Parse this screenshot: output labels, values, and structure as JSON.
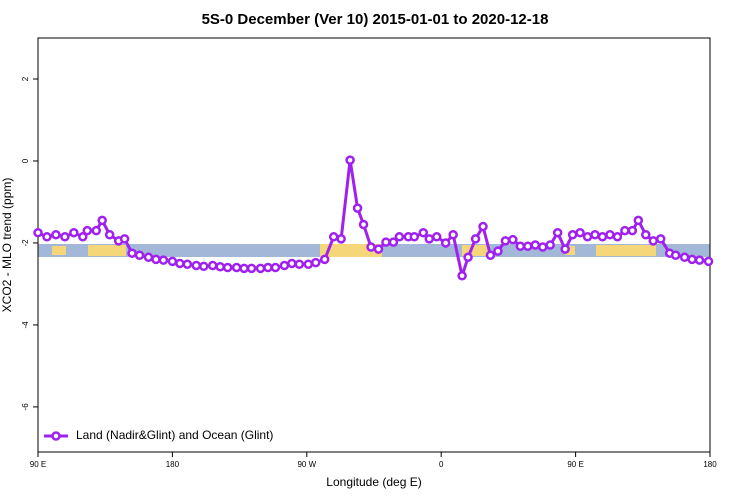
{
  "chart_data": {
    "type": "line",
    "title": "5S-0 December (Ver 10)   2015-01-01 to 2020-12-18",
    "x_label": "Longitude (deg E)",
    "y_label": "XCO2 - MLO trend (ppm)",
    "x": [
      90,
      96,
      102,
      108,
      114,
      120,
      123,
      129,
      133,
      138,
      144,
      148,
      153,
      158,
      164,
      169,
      174,
      180,
      185,
      190,
      196,
      201,
      207,
      212,
      217,
      223,
      228,
      233,
      239,
      244,
      249,
      255,
      260,
      265,
      271,
      276,
      282,
      288,
      293,
      299,
      304,
      308,
      313,
      318,
      323,
      328,
      332,
      338,
      342,
      348,
      352,
      357,
      363,
      368,
      374,
      378,
      383,
      388,
      393,
      398,
      403,
      408,
      413,
      418,
      423,
      428,
      433,
      438,
      443,
      448,
      453,
      458,
      463,
      468,
      473,
      478,
      483,
      488,
      492,
      497,
      502,
      507,
      513,
      517,
      523,
      528,
      533,
      539
    ],
    "series": [
      {
        "name": "Land (Nadir&Glint) and Ocean (Glint)",
        "color": "#a020f0",
        "values": [
          -1.75,
          -1.85,
          -1.8,
          -1.85,
          -1.75,
          -1.85,
          -1.7,
          -1.7,
          -1.45,
          -1.8,
          -1.95,
          -1.9,
          -2.25,
          -2.3,
          -2.35,
          -2.4,
          -2.42,
          -2.45,
          -2.5,
          -2.52,
          -2.55,
          -2.57,
          -2.55,
          -2.58,
          -2.6,
          -2.6,
          -2.62,
          -2.62,
          -2.62,
          -2.6,
          -2.6,
          -2.55,
          -2.5,
          -2.52,
          -2.52,
          -2.48,
          -2.4,
          -1.85,
          -1.9,
          0.02,
          -1.15,
          -1.55,
          -2.1,
          -2.15,
          -1.98,
          -1.98,
          -1.85,
          -1.85,
          -1.85,
          -1.75,
          -1.9,
          -1.85,
          -2.0,
          -1.8,
          -2.8,
          -2.35,
          -1.9,
          -1.6,
          -2.3,
          -2.2,
          -1.95,
          -1.92,
          -2.08,
          -2.08,
          -2.05,
          -2.1,
          -2.05,
          -1.75,
          -2.15,
          -1.8,
          -1.75,
          -1.85,
          -1.8,
          -1.85,
          -1.8,
          -1.85,
          -1.7,
          -1.7,
          -1.45,
          -1.8,
          -1.95,
          -1.9,
          -2.25,
          -2.3,
          -2.35,
          -2.4,
          -2.42,
          -2.45
        ]
      }
    ],
    "xlim": [
      90,
      540
    ],
    "xticks": [
      {
        "value": 90,
        "label": "90 E"
      },
      {
        "value": 180,
        "label": "180"
      },
      {
        "value": 270,
        "label": "90 W"
      },
      {
        "value": 360,
        "label": "0"
      },
      {
        "value": 450,
        "label": "90 E"
      },
      {
        "value": 540,
        "label": "180"
      }
    ],
    "ylim": [
      -7.1,
      3.0
    ],
    "yticks": [
      -6,
      -4,
      -2,
      0,
      2
    ],
    "legend_position": "bottom-left"
  }
}
